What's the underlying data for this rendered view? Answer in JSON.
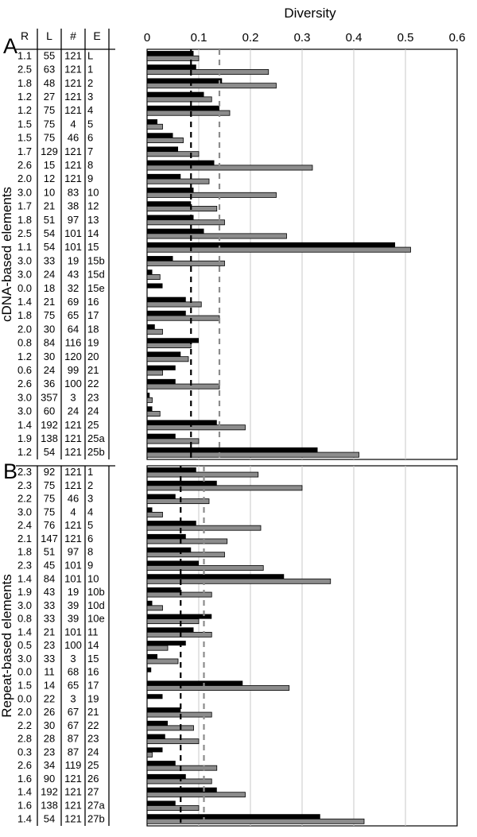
{
  "chart_data": {
    "type": "bar",
    "title": "",
    "xlabel": "Diversity",
    "xlim": [
      0,
      0.6
    ],
    "xticks": [
      "0",
      "0.1",
      "0.2",
      "0.3",
      "0.4",
      "0.5",
      "0.6"
    ],
    "grid": "vertical",
    "columns": [
      "R",
      "L",
      "#",
      "E"
    ],
    "panels": [
      {
        "letter": "A",
        "label": "cDNA-based elements",
        "ref_black": 0.085,
        "ref_gray": 0.14,
        "rows": [
          {
            "R": "1.1",
            "L": "55",
            "N": "121",
            "E": "L",
            "black": 0.09,
            "gray": 0.1
          },
          {
            "R": "2.5",
            "L": "63",
            "N": "121",
            "E": "1",
            "black": 0.095,
            "gray": 0.235
          },
          {
            "R": "1.8",
            "L": "48",
            "N": "121",
            "E": "2",
            "black": 0.145,
            "gray": 0.25
          },
          {
            "R": "1.2",
            "L": "27",
            "N": "121",
            "E": "3",
            "black": 0.11,
            "gray": 0.125
          },
          {
            "R": "1.2",
            "L": "75",
            "N": "121",
            "E": "4",
            "black": 0.14,
            "gray": 0.16
          },
          {
            "R": "1.5",
            "L": "75",
            "N": "4",
            "E": "5",
            "black": 0.02,
            "gray": 0.03
          },
          {
            "R": "1.5",
            "L": "75",
            "N": "46",
            "E": "6",
            "black": 0.05,
            "gray": 0.07
          },
          {
            "R": "1.7",
            "L": "129",
            "N": "121",
            "E": "7",
            "black": 0.06,
            "gray": 0.1
          },
          {
            "R": "2.6",
            "L": "15",
            "N": "121",
            "E": "8",
            "black": 0.13,
            "gray": 0.32
          },
          {
            "R": "2.0",
            "L": "12",
            "N": "121",
            "E": "9",
            "black": 0.065,
            "gray": 0.12
          },
          {
            "R": "3.0",
            "L": "10",
            "N": "83",
            "E": "10",
            "black": 0.09,
            "gray": 0.25
          },
          {
            "R": "1.7",
            "L": "21",
            "N": "38",
            "E": "12",
            "black": 0.085,
            "gray": 0.135
          },
          {
            "R": "1.8",
            "L": "51",
            "N": "97",
            "E": "13",
            "black": 0.09,
            "gray": 0.15
          },
          {
            "R": "2.5",
            "L": "54",
            "N": "101",
            "E": "14",
            "black": 0.11,
            "gray": 0.27
          },
          {
            "R": "1.1",
            "L": "54",
            "N": "101",
            "E": "15",
            "black": 0.48,
            "gray": 0.51
          },
          {
            "R": "3.0",
            "L": "33",
            "N": "19",
            "E": "15b",
            "black": 0.05,
            "gray": 0.15
          },
          {
            "R": "3.0",
            "L": "24",
            "N": "43",
            "E": "15d",
            "black": 0.01,
            "gray": 0.025
          },
          {
            "R": "0.0",
            "L": "18",
            "N": "32",
            "E": "15e",
            "black": 0.03,
            "gray": 0.0
          },
          {
            "R": "1.4",
            "L": "21",
            "N": "69",
            "E": "16",
            "black": 0.075,
            "gray": 0.105
          },
          {
            "R": "1.8",
            "L": "75",
            "N": "65",
            "E": "17",
            "black": 0.075,
            "gray": 0.14
          },
          {
            "R": "2.0",
            "L": "30",
            "N": "64",
            "E": "18",
            "black": 0.015,
            "gray": 0.03
          },
          {
            "R": "0.8",
            "L": "84",
            "N": "116",
            "E": "19",
            "black": 0.1,
            "gray": 0.085
          },
          {
            "R": "1.2",
            "L": "30",
            "N": "120",
            "E": "20",
            "black": 0.065,
            "gray": 0.08
          },
          {
            "R": "0.6",
            "L": "24",
            "N": "99",
            "E": "21",
            "black": 0.055,
            "gray": 0.03
          },
          {
            "R": "2.6",
            "L": "36",
            "N": "100",
            "E": "22",
            "black": 0.055,
            "gray": 0.14
          },
          {
            "R": "3.0",
            "L": "357",
            "N": "3",
            "E": "23",
            "black": 0.005,
            "gray": 0.01
          },
          {
            "R": "3.0",
            "L": "60",
            "N": "24",
            "E": "24",
            "black": 0.01,
            "gray": 0.025
          },
          {
            "R": "1.4",
            "L": "192",
            "N": "121",
            "E": "25",
            "black": 0.135,
            "gray": 0.19
          },
          {
            "R": "1.9",
            "L": "138",
            "N": "121",
            "E": "25a",
            "black": 0.055,
            "gray": 0.1
          },
          {
            "R": "1.2",
            "L": "54",
            "N": "121",
            "E": "25b",
            "black": 0.33,
            "gray": 0.41
          }
        ]
      },
      {
        "letter": "B",
        "label": "Repeat-based elements",
        "ref_black": 0.065,
        "ref_gray": 0.11,
        "rows": [
          {
            "R": "2.3",
            "L": "92",
            "N": "121",
            "E": "1",
            "black": 0.095,
            "gray": 0.215
          },
          {
            "R": "2.3",
            "L": "75",
            "N": "121",
            "E": "2",
            "black": 0.135,
            "gray": 0.3
          },
          {
            "R": "2.2",
            "L": "75",
            "N": "46",
            "E": "3",
            "black": 0.055,
            "gray": 0.12
          },
          {
            "R": "3.0",
            "L": "75",
            "N": "4",
            "E": "4",
            "black": 0.01,
            "gray": 0.03
          },
          {
            "R": "2.4",
            "L": "76",
            "N": "121",
            "E": "5",
            "black": 0.095,
            "gray": 0.22
          },
          {
            "R": "2.1",
            "L": "147",
            "N": "121",
            "E": "6",
            "black": 0.075,
            "gray": 0.155
          },
          {
            "R": "1.8",
            "L": "51",
            "N": "97",
            "E": "8",
            "black": 0.085,
            "gray": 0.15
          },
          {
            "R": "2.3",
            "L": "45",
            "N": "101",
            "E": "9",
            "black": 0.1,
            "gray": 0.225
          },
          {
            "R": "1.4",
            "L": "84",
            "N": "101",
            "E": "10",
            "black": 0.265,
            "gray": 0.355
          },
          {
            "R": "1.9",
            "L": "43",
            "N": "19",
            "E": "10b",
            "black": 0.065,
            "gray": 0.125
          },
          {
            "R": "3.0",
            "L": "33",
            "N": "39",
            "E": "10d",
            "black": 0.01,
            "gray": 0.03
          },
          {
            "R": "0.8",
            "L": "33",
            "N": "39",
            "E": "10e",
            "black": 0.125,
            "gray": 0.1
          },
          {
            "R": "1.4",
            "L": "21",
            "N": "101",
            "E": "11",
            "black": 0.09,
            "gray": 0.125
          },
          {
            "R": "0.5",
            "L": "23",
            "N": "100",
            "E": "14",
            "black": 0.075,
            "gray": 0.04
          },
          {
            "R": "3.0",
            "L": "33",
            "N": "3",
            "E": "15",
            "black": 0.02,
            "gray": 0.06
          },
          {
            "R": "0.0",
            "L": "11",
            "N": "68",
            "E": "16",
            "black": 0.008,
            "gray": 0.0
          },
          {
            "R": "1.5",
            "L": "14",
            "N": "65",
            "E": "17",
            "black": 0.185,
            "gray": 0.275
          },
          {
            "R": "0.0",
            "L": "22",
            "N": "3",
            "E": "19",
            "black": 0.03,
            "gray": 0.0
          },
          {
            "R": "2.0",
            "L": "26",
            "N": "67",
            "E": "21",
            "black": 0.065,
            "gray": 0.125
          },
          {
            "R": "2.2",
            "L": "30",
            "N": "67",
            "E": "22",
            "black": 0.04,
            "gray": 0.09
          },
          {
            "R": "2.8",
            "L": "28",
            "N": "87",
            "E": "23",
            "black": 0.035,
            "gray": 0.1
          },
          {
            "R": "0.3",
            "L": "23",
            "N": "87",
            "E": "24",
            "black": 0.03,
            "gray": 0.01
          },
          {
            "R": "2.6",
            "L": "34",
            "N": "119",
            "E": "25",
            "black": 0.055,
            "gray": 0.135
          },
          {
            "R": "1.6",
            "L": "90",
            "N": "121",
            "E": "26",
            "black": 0.075,
            "gray": 0.125
          },
          {
            "R": "1.4",
            "L": "192",
            "N": "121",
            "E": "27",
            "black": 0.135,
            "gray": 0.19
          },
          {
            "R": "1.6",
            "L": "138",
            "N": "121",
            "E": "27a",
            "black": 0.055,
            "gray": 0.1
          },
          {
            "R": "1.4",
            "L": "54",
            "N": "121",
            "E": "27b",
            "black": 0.335,
            "gray": 0.42
          }
        ]
      }
    ],
    "colors": {
      "black_series": "#000000",
      "gray_series": "#8c8c8c",
      "ref_gray": "#8c8c8c",
      "grid": "#c8c8c8"
    }
  }
}
